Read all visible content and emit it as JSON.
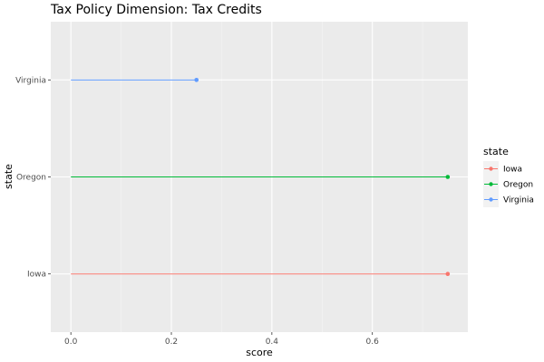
{
  "chart_data": {
    "type": "lollipop",
    "title": "Tax Policy Dimension: Tax Credits",
    "xlabel": "score",
    "ylabel": "state",
    "categories": [
      "Iowa",
      "Oregon",
      "Virginia"
    ],
    "values": [
      0.75,
      0.75,
      0.25
    ],
    "xlim": [
      -0.04,
      0.79
    ],
    "xticks": [
      0.0,
      0.2,
      0.4,
      0.6
    ],
    "xtick_labels": [
      "0.0",
      "0.2",
      "0.4",
      "0.6"
    ],
    "grid": true,
    "legend": {
      "title": "state",
      "placement": "right",
      "entries": [
        "Iowa",
        "Oregon",
        "Virginia"
      ]
    },
    "colors": {
      "Iowa": "#F8766D",
      "Oregon": "#00BA38",
      "Virginia": "#619CFF",
      "panel": "#EBEBEB",
      "grid_major": "#FFFFFF",
      "grid_minor": "#F5F5F5"
    }
  }
}
